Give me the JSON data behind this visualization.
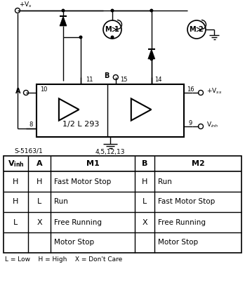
{
  "circuit_label": "S-5163/1",
  "ground_label": "4,5,12,13",
  "ic_label": "1/2 L 293",
  "table_headers": [
    "V_inh",
    "A",
    "M1",
    "B",
    "M2"
  ],
  "table_rows": [
    [
      "H",
      "H",
      "Fast Motor Stop",
      "H",
      "Run"
    ],
    [
      "H",
      "L",
      "Run",
      "L",
      "Fast Motor Stop"
    ],
    [
      "L",
      "X",
      "Free Running",
      "X",
      "Free Running"
    ],
    [
      "",
      "",
      "Motor Stop",
      "",
      "Motor Stop"
    ]
  ],
  "table_footer": "L = Low    H = High    X = Don't Care",
  "bg_color": "#ffffff",
  "line_color": "#000000"
}
